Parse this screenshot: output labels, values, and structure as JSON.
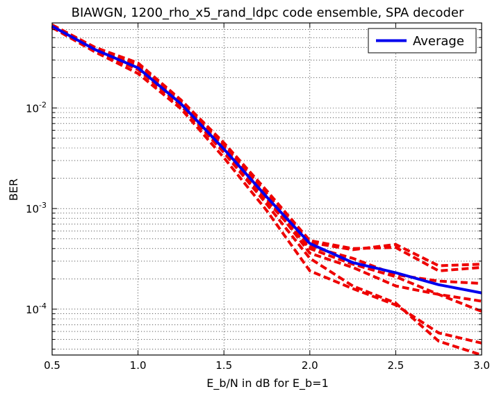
{
  "chart_data": {
    "type": "line",
    "title": "BIAWGN, 1200_rho_x5_rand_ldpc code ensemble, SPA decoder",
    "xlabel": "E_b/N in dB for E_b=1",
    "ylabel": "BER",
    "xlim": [
      0.5,
      3.0
    ],
    "ylim": [
      3.5e-05,
      0.07
    ],
    "yscale": "log",
    "grid": true,
    "legend_position": "top-right",
    "x_ticks": [
      {
        "value": 0.5,
        "label": "0.5"
      },
      {
        "value": 1.0,
        "label": "1.0"
      },
      {
        "value": 1.5,
        "label": "1.5"
      },
      {
        "value": 2.0,
        "label": "2.0"
      },
      {
        "value": 2.5,
        "label": "2.5"
      },
      {
        "value": 3.0,
        "label": "3.0"
      }
    ],
    "y_ticks": [
      {
        "value": 0.01,
        "base": "10",
        "exp": "-2"
      },
      {
        "value": 0.001,
        "base": "10",
        "exp": "-3"
      },
      {
        "value": 0.0001,
        "base": "10",
        "exp": "-4"
      }
    ],
    "colors": {
      "average": "#0000ee",
      "ensemble": "#ee0000"
    },
    "series": [
      {
        "name": "Average",
        "role": "average",
        "x": [
          0.5,
          0.75,
          1.0,
          1.25,
          1.5,
          1.75,
          2.0,
          2.25,
          2.5,
          2.75,
          3.0
        ],
        "y": [
          0.065,
          0.038,
          0.025,
          0.011,
          0.0039,
          0.0013,
          0.00045,
          0.00029,
          0.00023,
          0.000175,
          0.000145
        ]
      },
      {
        "role": "ensemble",
        "x": [
          0.5,
          0.75,
          1.0,
          1.25,
          1.5,
          1.75,
          2.0,
          2.25,
          2.5,
          2.75,
          3.0
        ],
        "y": [
          0.064,
          0.037,
          0.024,
          0.0105,
          0.0036,
          0.0011,
          0.00032,
          0.00017,
          0.000115,
          4.8e-05,
          3.5e-05
        ]
      },
      {
        "role": "ensemble",
        "x": [
          0.5,
          0.75,
          1.0,
          1.25,
          1.5,
          1.75,
          2.0,
          2.25,
          2.5,
          2.75,
          3.0
        ],
        "y": [
          0.063,
          0.036,
          0.022,
          0.0098,
          0.0032,
          0.00095,
          0.00024,
          0.00016,
          0.00011,
          5.8e-05,
          4.6e-05
        ]
      },
      {
        "role": "ensemble",
        "x": [
          0.5,
          0.75,
          1.0,
          1.25,
          1.5,
          1.75,
          2.0,
          2.25,
          2.5,
          2.75,
          3.0
        ],
        "y": [
          0.066,
          0.039,
          0.027,
          0.0115,
          0.0043,
          0.0014,
          0.00046,
          0.00039,
          0.00044,
          0.00027,
          0.00028
        ]
      },
      {
        "role": "ensemble",
        "x": [
          0.5,
          0.75,
          1.0,
          1.25,
          1.5,
          1.75,
          2.0,
          2.25,
          2.5,
          2.75,
          3.0
        ],
        "y": [
          0.067,
          0.04,
          0.028,
          0.012,
          0.0045,
          0.0015,
          0.00048,
          0.0004,
          0.00041,
          0.00024,
          0.00026
        ]
      },
      {
        "role": "ensemble",
        "x": [
          0.5,
          0.75,
          1.0,
          1.25,
          1.5,
          1.75,
          2.0,
          2.25,
          2.5,
          2.75,
          3.0
        ],
        "y": [
          0.065,
          0.038,
          0.026,
          0.011,
          0.0041,
          0.00125,
          0.00042,
          0.00032,
          0.00022,
          0.00019,
          0.00018
        ]
      },
      {
        "role": "ensemble",
        "x": [
          0.5,
          0.75,
          1.0,
          1.25,
          1.5,
          1.75,
          2.0,
          2.25,
          2.5,
          2.75,
          3.0
        ],
        "y": [
          0.064,
          0.037,
          0.025,
          0.0105,
          0.0038,
          0.0012,
          0.0004,
          0.00028,
          0.00021,
          0.00014,
          9.5e-05
        ]
      },
      {
        "role": "ensemble",
        "x": [
          0.5,
          0.75,
          1.0,
          1.25,
          1.5,
          1.75,
          2.0,
          2.25,
          2.5,
          2.75,
          3.0
        ],
        "y": [
          0.065,
          0.038,
          0.026,
          0.011,
          0.004,
          0.0013,
          0.00036,
          0.00026,
          0.00017,
          0.00014,
          0.00012
        ]
      }
    ]
  }
}
